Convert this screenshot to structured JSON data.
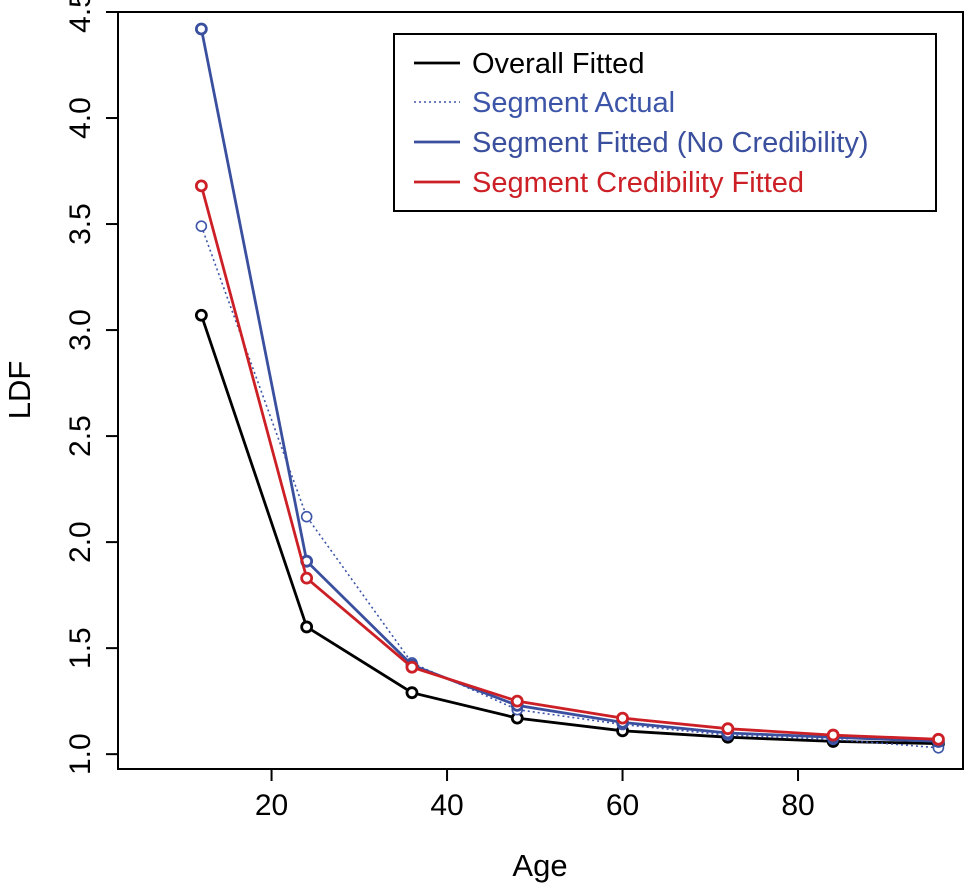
{
  "chart_data": {
    "type": "line",
    "title": "",
    "xlabel": "Age",
    "ylabel": "LDF",
    "xlim": [
      2.5,
      98.8
    ],
    "ylim": [
      0.93,
      4.5
    ],
    "xticks": [
      20,
      40,
      60,
      80
    ],
    "yticks": [
      1.0,
      1.5,
      2.0,
      2.5,
      3.0,
      3.5,
      4.0,
      4.5
    ],
    "ytick_labels": [
      "1.0",
      "1.5",
      "2.0",
      "2.5",
      "3.0",
      "3.5",
      "4.0",
      "4.5"
    ],
    "grid": false,
    "legend_position": "top-right",
    "x": [
      12,
      24,
      36,
      48,
      60,
      72,
      84,
      96
    ],
    "series": [
      {
        "name": "Overall Fitted",
        "color": "#000000",
        "style": "solid",
        "values": [
          3.07,
          1.6,
          1.29,
          1.17,
          1.11,
          1.08,
          1.06,
          1.05
        ]
      },
      {
        "name": "Segment Actual",
        "color": "#3d55a8",
        "style": "dotted",
        "values": [
          3.49,
          2.12,
          1.43,
          1.21,
          1.14,
          1.09,
          1.07,
          1.03
        ]
      },
      {
        "name": "Segment Fitted (No Credibility)",
        "color": "#3a4f9e",
        "style": "solid",
        "values": [
          4.42,
          1.91,
          1.42,
          1.23,
          1.15,
          1.1,
          1.08,
          1.06
        ]
      },
      {
        "name": "Segment Credibility Fitted",
        "color": "#cc2026",
        "style": "solid",
        "values": [
          3.68,
          1.83,
          1.41,
          1.25,
          1.17,
          1.12,
          1.09,
          1.07
        ]
      }
    ]
  }
}
